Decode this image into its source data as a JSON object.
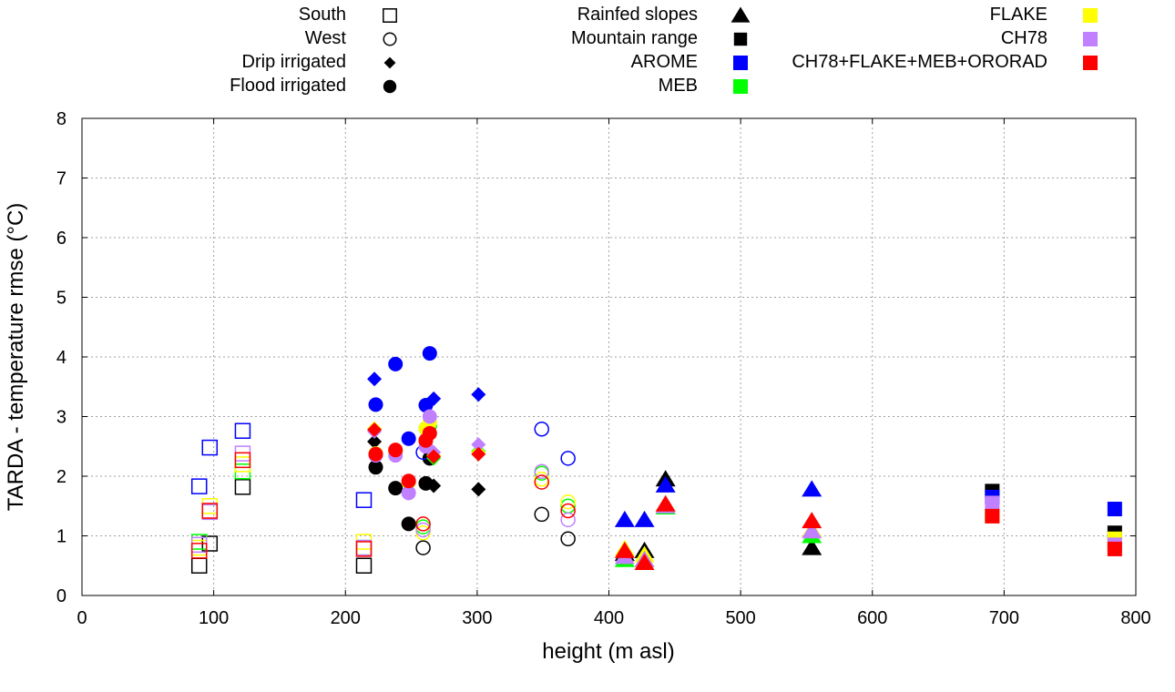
{
  "chart_data": {
    "type": "scatter",
    "title": "",
    "xlabel": "height (m asl)",
    "ylabel": "TARDA - temperature rmse (°C)",
    "xlim": [
      0,
      800
    ],
    "ylim": [
      0,
      8
    ],
    "xticks": [
      0,
      100,
      200,
      300,
      400,
      500,
      600,
      700,
      800
    ],
    "yticks": [
      0,
      1,
      2,
      3,
      4,
      5,
      6,
      7,
      8
    ],
    "grid": true,
    "legend": {
      "placement": "top-outside",
      "shapes": [
        {
          "label": "South",
          "shape": "open-square"
        },
        {
          "label": "West",
          "shape": "open-circle"
        },
        {
          "label": "Drip irrigated",
          "shape": "diamond"
        },
        {
          "label": "Flood irrigated",
          "shape": "circle"
        },
        {
          "label": "Rainfed slopes",
          "shape": "triangle"
        },
        {
          "label": "Mountain range",
          "shape": "square"
        }
      ],
      "models": [
        {
          "key": "arome",
          "label": "AROME",
          "color": "#0000ff"
        },
        {
          "key": "meb",
          "label": "MEB",
          "color": "#00ff00"
        },
        {
          "key": "flake",
          "label": "FLAKE",
          "color": "#ffff00"
        },
        {
          "key": "ch78",
          "label": "CH78",
          "color": "#c080ff"
        },
        {
          "key": "all",
          "label": "CH78+FLAKE+MEB+ORORAD",
          "color": "#ff0000"
        }
      ]
    },
    "draw_order": [
      "black",
      "arome",
      "meb",
      "flake",
      "ch78",
      "all"
    ],
    "colors": {
      "black": "#000000",
      "arome": "#0000ff",
      "meb": "#00ff00",
      "flake": "#ffff00",
      "ch78": "#c080ff",
      "all": "#ff0000"
    },
    "sites": [
      {
        "group": "South",
        "shape": "open-square",
        "x": 89,
        "values": {
          "black": 0.5,
          "arome": 1.83,
          "meb": 0.9,
          "flake": 0.8,
          "ch78": 0.85,
          "all": 0.75
        }
      },
      {
        "group": "South",
        "shape": "open-square",
        "x": 97,
        "values": {
          "black": 0.87,
          "arome": 2.48,
          "meb": 1.4,
          "flake": 1.5,
          "ch78": 1.4,
          "all": 1.42
        }
      },
      {
        "group": "South",
        "shape": "open-square",
        "x": 122,
        "values": {
          "black": 1.82,
          "arome": 2.76,
          "meb": 2.08,
          "flake": 2.2,
          "ch78": 2.38,
          "all": 2.27
        }
      },
      {
        "group": "South",
        "shape": "open-square",
        "x": 214,
        "values": {
          "black": 0.5,
          "arome": 1.6,
          "meb": 0.8,
          "flake": 0.9,
          "ch78": 0.8,
          "all": 0.78
        }
      },
      {
        "group": "West",
        "shape": "open-circle",
        "x": 259,
        "values": {
          "black": 0.8,
          "arome": 2.4,
          "meb": 1.15,
          "flake": 1.05,
          "ch78": 1.1,
          "all": 1.2
        }
      },
      {
        "group": "West",
        "shape": "open-circle",
        "x": 349,
        "values": {
          "black": 1.36,
          "arome": 2.79,
          "meb": 2.05,
          "flake": 1.95,
          "ch78": 2.08,
          "all": 1.9
        }
      },
      {
        "group": "West",
        "shape": "open-circle",
        "x": 369,
        "values": {
          "black": 0.95,
          "arome": 2.3,
          "meb": 1.5,
          "flake": 1.57,
          "ch78": 1.27,
          "all": 1.42
        }
      },
      {
        "group": "Drip irrigated",
        "shape": "diamond",
        "x": 222,
        "values": {
          "black": 2.58,
          "arome": 3.63,
          "meb": 2.78,
          "flake": 2.8,
          "ch78": 2.75,
          "all": 2.78
        }
      },
      {
        "group": "Drip irrigated",
        "shape": "diamond",
        "x": 267,
        "values": {
          "black": 1.84,
          "arome": 3.3,
          "meb": 2.3,
          "flake": 2.35,
          "ch78": 2.4,
          "all": 2.33
        }
      },
      {
        "group": "Drip irrigated",
        "shape": "diamond",
        "x": 301,
        "values": {
          "black": 1.78,
          "arome": 3.37,
          "meb": 2.42,
          "flake": 2.4,
          "ch78": 2.53,
          "all": 2.37
        }
      },
      {
        "group": "Flood irrigated",
        "shape": "circle",
        "x": 223,
        "values": {
          "black": 2.15,
          "arome": 3.2,
          "meb": 2.37,
          "flake": 2.38,
          "ch78": 2.35,
          "all": 2.37
        }
      },
      {
        "group": "Flood irrigated",
        "shape": "circle",
        "x": 238,
        "values": {
          "black": 1.8,
          "arome": 3.88,
          "meb": 2.42,
          "flake": 2.42,
          "ch78": 2.35,
          "all": 2.44
        }
      },
      {
        "group": "Flood irrigated",
        "shape": "circle",
        "x": 248,
        "values": {
          "black": 1.2,
          "arome": 2.63,
          "meb": 1.9,
          "flake": 1.9,
          "ch78": 1.72,
          "all": 1.92
        }
      },
      {
        "group": "Flood irrigated",
        "shape": "circle",
        "x": 261,
        "values": {
          "black": 1.88,
          "arome": 3.19,
          "meb": 2.8,
          "flake": 2.8,
          "ch78": 2.5,
          "all": 2.6
        }
      },
      {
        "group": "Flood irrigated",
        "shape": "circle",
        "x": 264,
        "values": {
          "black": 2.3,
          "arome": 4.06,
          "meb": 2.85,
          "flake": 2.9,
          "ch78": 3.0,
          "all": 2.72
        }
      },
      {
        "group": "Rainfed slopes",
        "shape": "triangle",
        "x": 412,
        "values": {
          "black": 0.7,
          "arome": 1.27,
          "meb": 0.6,
          "flake": 0.78,
          "ch78": 0.65,
          "all": 0.75
        }
      },
      {
        "group": "Rainfed slopes",
        "shape": "triangle",
        "x": 427,
        "values": {
          "black": 0.75,
          "arome": 1.27,
          "meb": 0.6,
          "flake": 0.68,
          "ch78": 0.6,
          "all": 0.55
        }
      },
      {
        "group": "Rainfed slopes",
        "shape": "triangle",
        "x": 443,
        "values": {
          "black": 1.95,
          "arome": 1.85,
          "meb": 1.48,
          "flake": 1.52,
          "ch78": 1.5,
          "all": 1.53
        }
      },
      {
        "group": "Rainfed slopes",
        "shape": "triangle",
        "x": 554,
        "values": {
          "black": 0.8,
          "arome": 1.78,
          "meb": 1.0,
          "flake": 1.1,
          "ch78": 1.08,
          "all": 1.25
        }
      },
      {
        "group": "Mountain range",
        "shape": "square",
        "x": 691,
        "values": {
          "black": 1.75,
          "arome": 1.65,
          "meb": 1.35,
          "flake": 1.35,
          "ch78": 1.55,
          "all": 1.33
        }
      },
      {
        "group": "Mountain range",
        "shape": "square",
        "x": 784,
        "values": {
          "black": 1.05,
          "arome": 1.45,
          "meb": 0.9,
          "flake": 0.95,
          "ch78": 0.85,
          "all": 0.78
        }
      }
    ]
  }
}
